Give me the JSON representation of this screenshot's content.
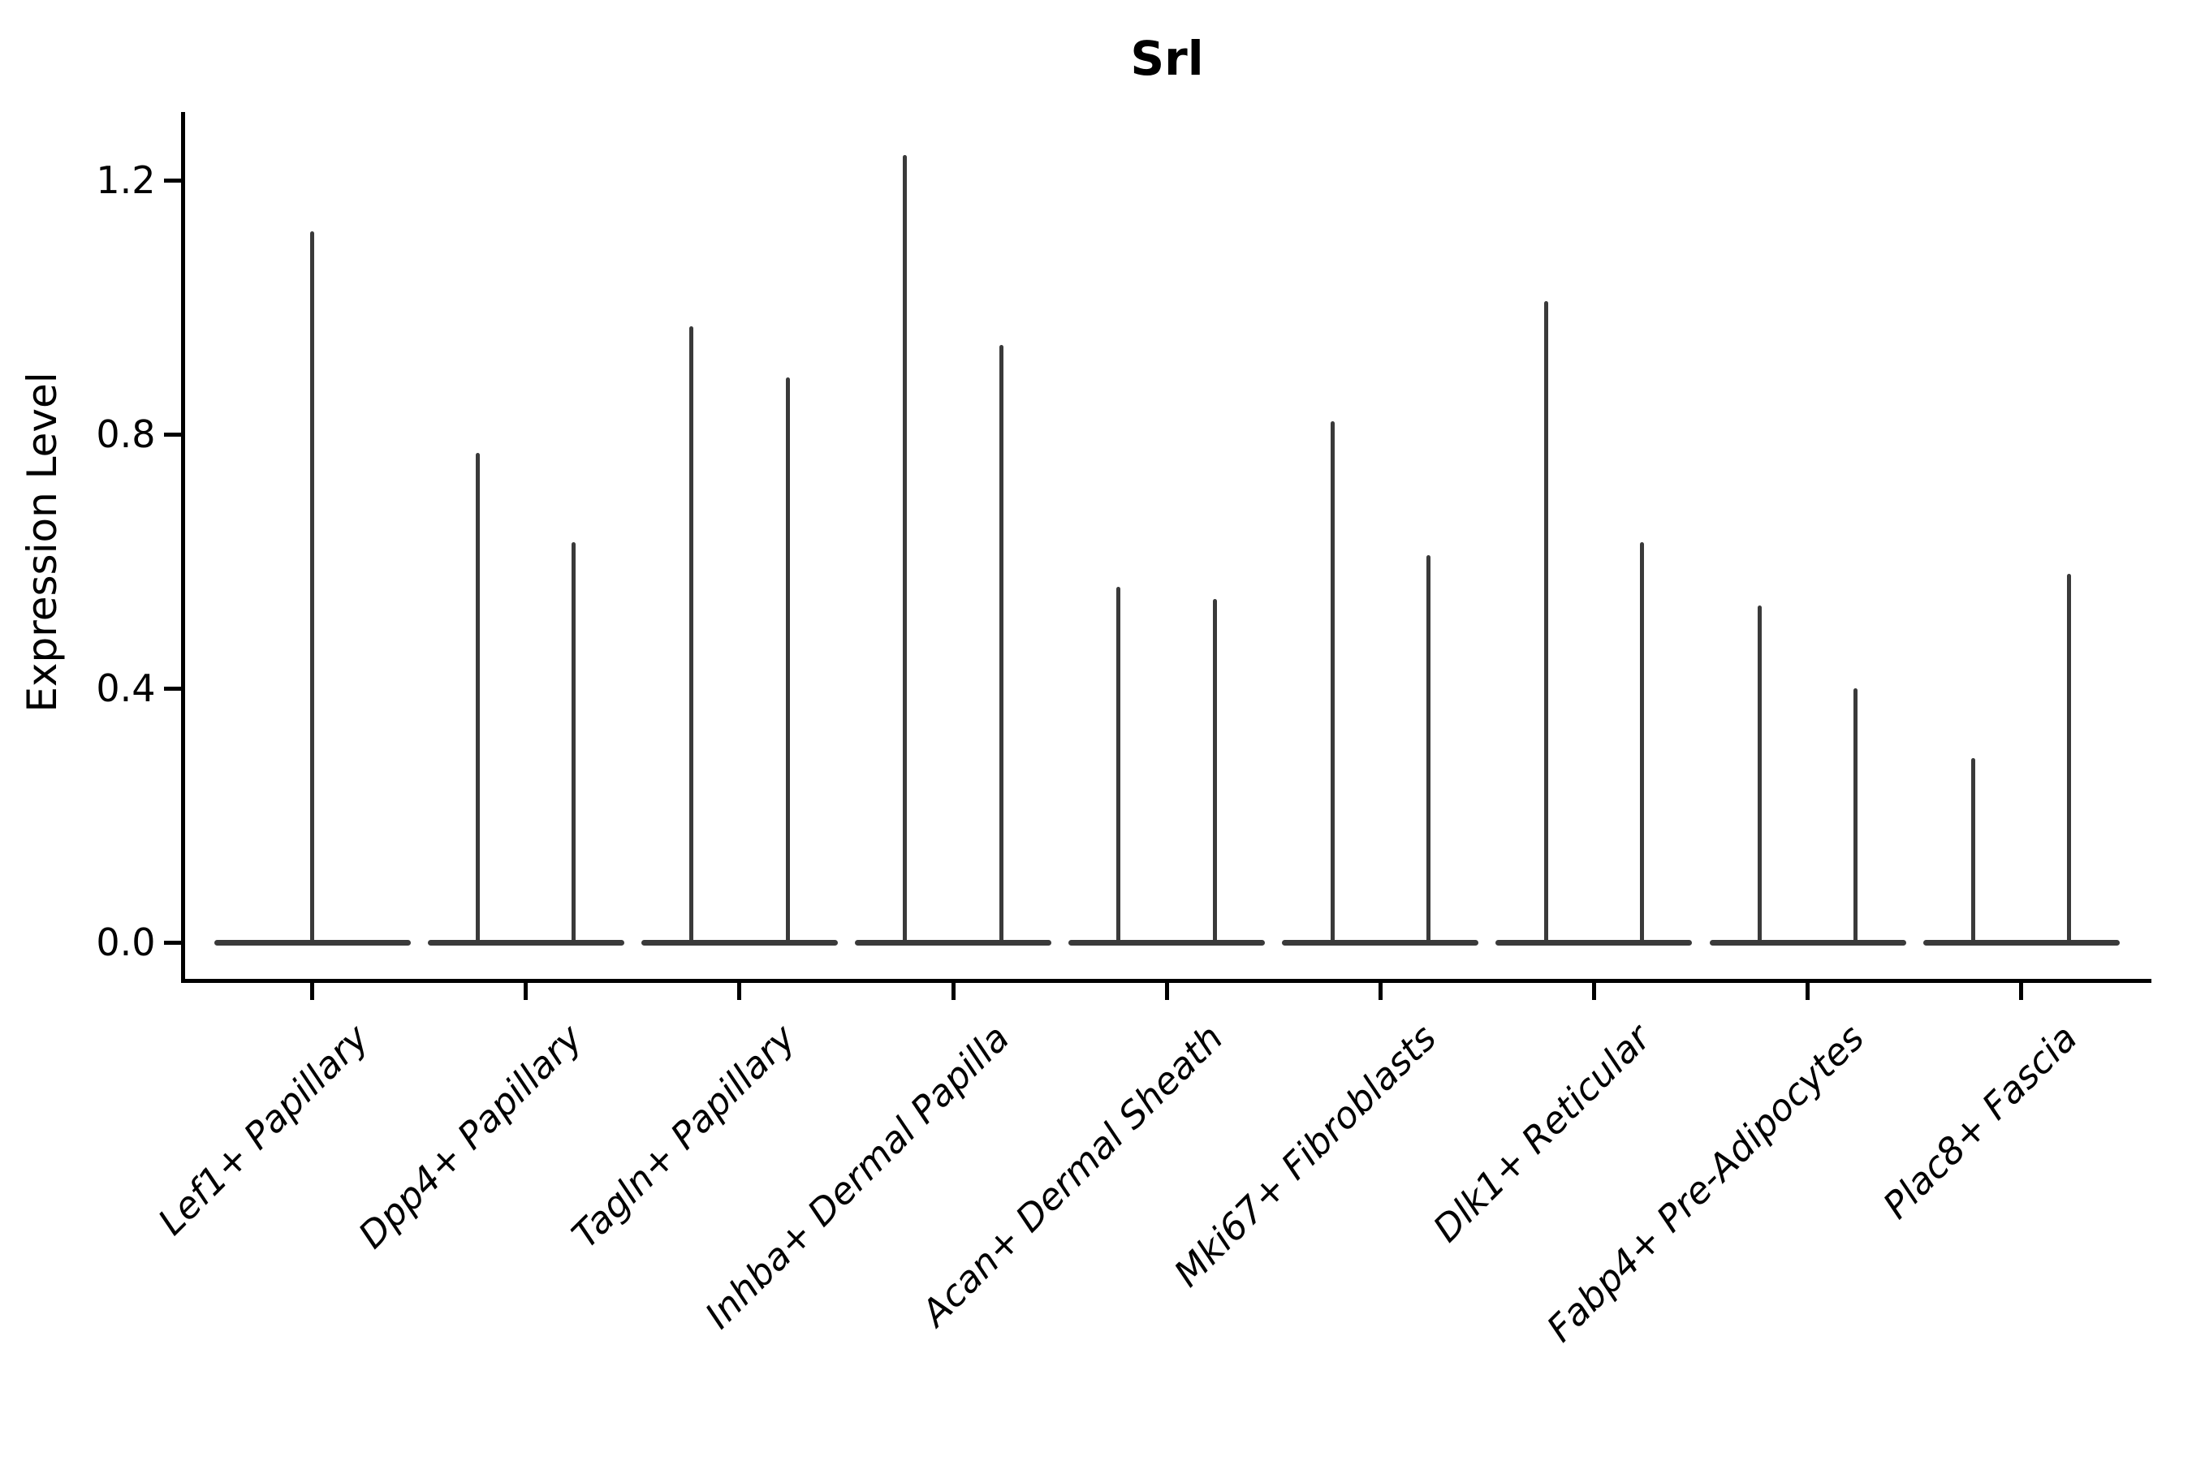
{
  "title": "Srl",
  "axes": {
    "ylabel": "Expression Level",
    "ytick_labels": [
      "0.0",
      "0.4",
      "0.8",
      "1.2"
    ]
  },
  "chart_data": {
    "type": "violin",
    "title": "Srl",
    "xlabel": "",
    "ylabel": "Expression Level",
    "ytick_values": [
      0.0,
      0.4,
      0.8,
      1.2
    ],
    "ytick_labels": [
      "0.0",
      "0.4",
      "0.8",
      "1.2"
    ],
    "ylim": [
      -0.06,
      1.31
    ],
    "grid": false,
    "legend": false,
    "categories": [
      "Lef1+ Papillary",
      "Dpp4+ Papillary",
      "Tagln+ Papillary",
      "Inhba+ Dermal Papilla",
      "Acan+ Dermal Sheath",
      "Mki67+ Fibroblasts",
      "Dlk1+ Reticular",
      "Fabp4+ Pre-Adipocytes",
      "Plac8+ Fascia"
    ],
    "violins": [
      {
        "category": "Lef1+ Papillary",
        "base_halfwidth": 0.46,
        "peaks": [
          {
            "offset": 0.0,
            "max": 1.12
          }
        ]
      },
      {
        "category": "Dpp4+ Papillary",
        "base_halfwidth": 0.46,
        "peaks": [
          {
            "offset": -0.225,
            "max": 0.77
          },
          {
            "offset": 0.225,
            "max": 0.63
          }
        ]
      },
      {
        "category": "Tagln+ Papillary",
        "base_halfwidth": 0.46,
        "peaks": [
          {
            "offset": -0.225,
            "max": 0.97
          },
          {
            "offset": 0.225,
            "max": 0.89
          }
        ]
      },
      {
        "category": "Inhba+ Dermal Papilla",
        "base_halfwidth": 0.46,
        "peaks": [
          {
            "offset": -0.225,
            "max": 1.24
          },
          {
            "offset": 0.225,
            "max": 0.94
          }
        ]
      },
      {
        "category": "Acan+ Dermal Sheath",
        "base_halfwidth": 0.46,
        "peaks": [
          {
            "offset": -0.225,
            "max": 0.56
          },
          {
            "offset": 0.225,
            "max": 0.54
          }
        ]
      },
      {
        "category": "Mki67+ Fibroblasts",
        "base_halfwidth": 0.46,
        "peaks": [
          {
            "offset": -0.225,
            "max": 0.82
          },
          {
            "offset": 0.225,
            "max": 0.61
          }
        ]
      },
      {
        "category": "Dlk1+ Reticular",
        "base_halfwidth": 0.46,
        "peaks": [
          {
            "offset": -0.225,
            "max": 1.01
          },
          {
            "offset": 0.225,
            "max": 0.63
          }
        ]
      },
      {
        "category": "Fabp4+ Pre-Adipocytes",
        "base_halfwidth": 0.46,
        "peaks": [
          {
            "offset": -0.225,
            "max": 0.53
          },
          {
            "offset": 0.225,
            "max": 0.4
          }
        ]
      },
      {
        "category": "Plac8+ Fascia",
        "base_halfwidth": 0.46,
        "peaks": [
          {
            "offset": -0.225,
            "max": 0.29
          },
          {
            "offset": 0.225,
            "max": 0.58
          }
        ]
      }
    ]
  },
  "colors": {
    "violin": "#3a3a3a",
    "axis": "#000000",
    "text": "#000000",
    "background": "#ffffff"
  }
}
